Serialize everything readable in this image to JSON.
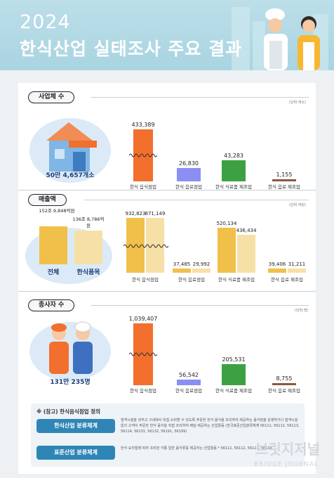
{
  "header": {
    "year": "2024",
    "title": "한식산업 실태조사 주요 결과"
  },
  "colors": {
    "orange": "#f26f2d",
    "blue": "#8b8ef2",
    "green": "#3da144",
    "brown": "#8a5a3c",
    "gold": "#f1c04a",
    "light_gold": "#f7e0a6",
    "navy": "#1a3d78"
  },
  "sections": {
    "business": {
      "label": "사업체 수",
      "unit": "(단위:개소)",
      "total": "50만 4,657개소"
    },
    "sales": {
      "label": "매출액",
      "unit": "(단위:억원)",
      "total_label": "전체",
      "total_value": "152조 9,848억원",
      "hansik_label": "한식품목",
      "hansik_value": "136조 8,786억원"
    },
    "workers": {
      "label": "종사자 수",
      "unit": "(단위:명)",
      "total": "131만 235명"
    }
  },
  "chart_data": [
    {
      "type": "bar",
      "title": "사업체 수",
      "categories": [
        "한식 음식점업",
        "한식 음료점업",
        "한식 식료품 제조업",
        "한식 음료 제조업"
      ],
      "values": [
        433389,
        26830,
        43283,
        1155
      ],
      "labels": [
        "433,389",
        "26,830",
        "43,283",
        "1,155"
      ],
      "colors": [
        "#f26f2d",
        "#8b8ef2",
        "#3da144",
        "#8a5a3c"
      ]
    },
    {
      "type": "bar",
      "title": "매출액",
      "categories": [
        "한식 음식점업",
        "한식 음료점업",
        "한식 식료품 제조업",
        "한식 음료 제조업"
      ],
      "series": [
        {
          "name": "전체",
          "values": [
            932823,
            37485,
            520134,
            39406
          ],
          "labels": [
            "932,823",
            "37,485",
            "520,134",
            "39,406"
          ]
        },
        {
          "name": "한식품목",
          "values": [
            871149,
            29992,
            436434,
            31211
          ],
          "labels": [
            "871,149",
            "29,992",
            "436,434",
            "31,211"
          ]
        }
      ]
    },
    {
      "type": "bar",
      "title": "종사자 수",
      "categories": [
        "한식 음식점업",
        "한식 음료점업",
        "한식 식료품 제조업",
        "한식 음료 제조업"
      ],
      "values": [
        1039407,
        56542,
        205531,
        8755
      ],
      "labels": [
        "1,039,407",
        "56,542",
        "205,531",
        "8,755"
      ],
      "colors": [
        "#f26f2d",
        "#8b8ef2",
        "#3da144",
        "#8a5a3c"
      ]
    }
  ],
  "definitions": {
    "title": "※ (참고) 한식음식점업 정의",
    "items": [
      {
        "label": "한식산업 분류체계",
        "text": "점객시설을 갖추고 구내에서 직접 소비할 수 있도록 주문한 한식 음식을 조리하여 제공하는 음식점을 운영하거나 접객시설 없이 고객이 주문한 한식 음식을 직접 조리하여 배달·제공하는 산업활동 (한국표준산업분류체계 56111, 56112, 56113, 56114, 56131, 56132, 56191, 56199)"
      },
      {
        "label": "표준산업 분류체계",
        "text": "한식 요리법에 따라 조리된 각종 일반 음식류를 제공하는 산업활동 * 56111, 56112, 56113, 56114"
      }
    ]
  },
  "watermark": {
    "main": "브릿지저널",
    "sub": "BRIDGE JOURNAL"
  }
}
